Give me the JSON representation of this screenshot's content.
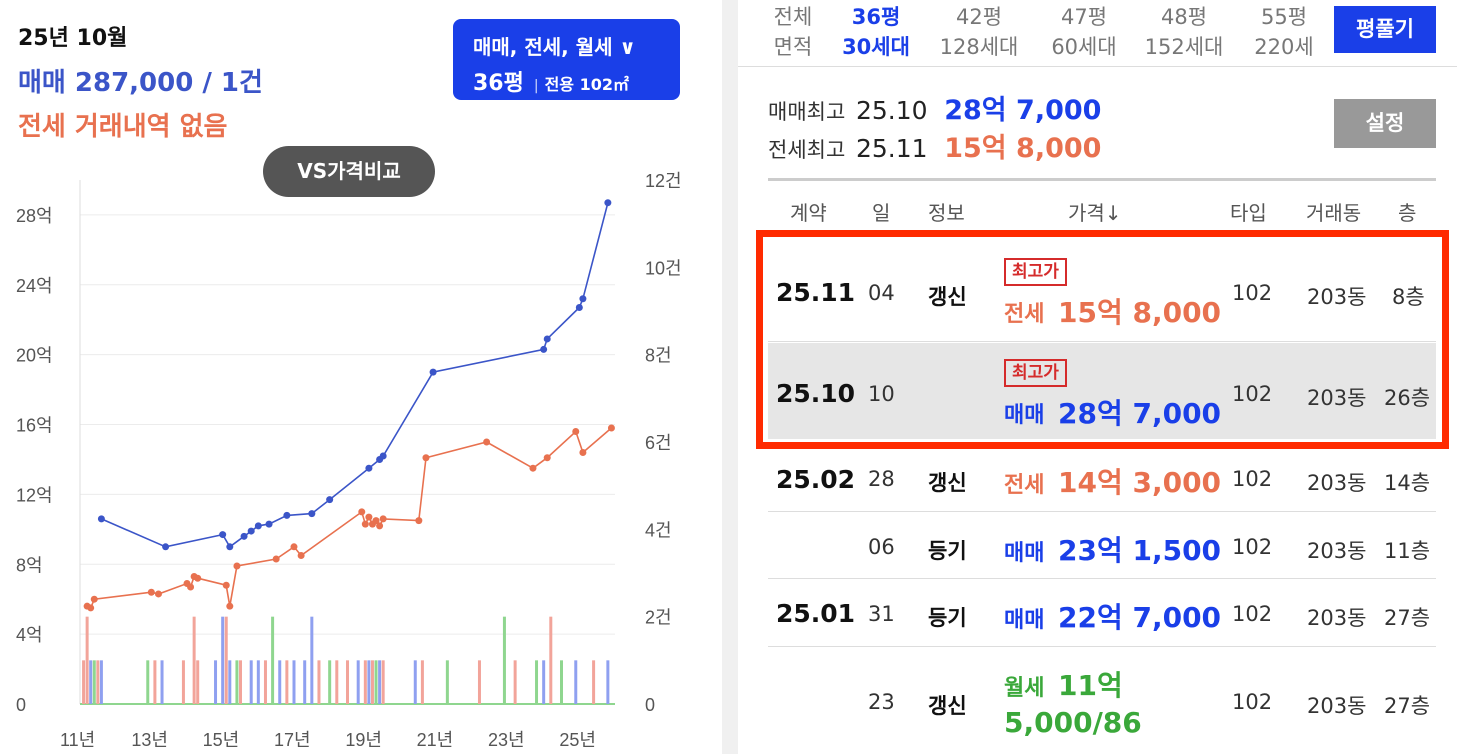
{
  "summary": {
    "period": "25년 10월",
    "sale": "매매 287,000 / 1건",
    "jeonse": "전세 거래내역 없음"
  },
  "filter": {
    "types": "매매, 전세, 월세 ∨",
    "pyeong": "36평",
    "exclusive": "전용 102㎡"
  },
  "vs_button": "VS가격비교",
  "area_tabs": [
    {
      "top": "전체",
      "bottom": "면적",
      "active": false
    },
    {
      "top": "36평",
      "bottom": "30세대",
      "active": true
    },
    {
      "top": "42평",
      "bottom": "128세대",
      "active": false
    },
    {
      "top": "47평",
      "bottom": "60세대",
      "active": false
    },
    {
      "top": "48평",
      "bottom": "152세대",
      "active": false
    },
    {
      "top": "55평",
      "bottom": "220세",
      "active": false
    }
  ],
  "pyeong_button": "평풀기",
  "max_info": {
    "sale_label": "매매최고",
    "sale_date": "25.10",
    "sale_price": "28억 7,000",
    "jeonse_label": "전세최고",
    "jeonse_date": "25.11",
    "jeonse_price": "15억 8,000"
  },
  "settings_button": "설정",
  "table": {
    "headers": [
      "계약",
      "일",
      "정보",
      "가격↓",
      "타입",
      "거래동",
      "층"
    ],
    "rows": [
      {
        "month": "25.11",
        "day": "04",
        "info": "갱신",
        "badge": "최고가",
        "kind": "전세",
        "amount": "15억 8,000",
        "type": "102",
        "dong": "203동",
        "floor": "8층"
      },
      {
        "month": "25.10",
        "day": "10",
        "info": "",
        "badge": "최고가",
        "kind": "매매",
        "amount": "28억 7,000",
        "type": "102",
        "dong": "203동",
        "floor": "26층"
      },
      {
        "month": "25.02",
        "day": "28",
        "info": "갱신",
        "badge": "",
        "kind": "전세",
        "amount": "14억 3,000",
        "type": "102",
        "dong": "203동",
        "floor": "14층"
      },
      {
        "month": "",
        "day": "06",
        "info": "등기",
        "badge": "",
        "kind": "매매",
        "amount": "23억 1,500",
        "type": "102",
        "dong": "203동",
        "floor": "11층"
      },
      {
        "month": "25.01",
        "day": "31",
        "info": "등기",
        "badge": "",
        "kind": "매매",
        "amount": "22억 7,000",
        "type": "102",
        "dong": "203동",
        "floor": "27층"
      },
      {
        "month": "",
        "day": "23",
        "info": "갱신",
        "badge": "",
        "kind": "월세",
        "amount": "11억",
        "amount2": "5,000/86",
        "type": "102",
        "dong": "203동",
        "floor": "27층"
      }
    ]
  },
  "colors": {
    "sale": "#3b55c8",
    "jeonse": "#e8714f",
    "monthly": "#3aa83a",
    "accent": "#1a3fe8",
    "highlight": "#ff2a00"
  },
  "chart_data": {
    "type": "line",
    "x_ticks": [
      "11년",
      "13년",
      "15년",
      "17년",
      "19년",
      "21년",
      "23년",
      "25년"
    ],
    "y_left_ticks": [
      "0",
      "4억",
      "8억",
      "12억",
      "16억",
      "20억",
      "24억",
      "28억"
    ],
    "y_left_range": [
      0,
      30
    ],
    "y_right_ticks": [
      "0",
      "2건",
      "4건",
      "6건",
      "8건",
      "10건",
      "12건"
    ],
    "y_right_range": [
      0,
      12
    ],
    "series": [
      {
        "name": "매매",
        "points": [
          [
            2011.6,
            10.6
          ],
          [
            2013.4,
            9.0
          ],
          [
            2015.0,
            9.7
          ],
          [
            2015.2,
            9.0
          ],
          [
            2015.6,
            9.6
          ],
          [
            2015.8,
            9.9
          ],
          [
            2016.0,
            10.2
          ],
          [
            2016.3,
            10.3
          ],
          [
            2016.8,
            10.8
          ],
          [
            2017.5,
            10.9
          ],
          [
            2018.0,
            11.7
          ],
          [
            2019.1,
            13.5
          ],
          [
            2019.4,
            14.0
          ],
          [
            2019.5,
            14.2
          ],
          [
            2020.9,
            19.0
          ],
          [
            2024.0,
            20.3
          ],
          [
            2024.1,
            20.9
          ],
          [
            2025.0,
            22.7
          ],
          [
            2025.1,
            23.2
          ],
          [
            2025.8,
            28.7
          ]
        ]
      },
      {
        "name": "전세",
        "points": [
          [
            2011.2,
            5.6
          ],
          [
            2011.3,
            5.5
          ],
          [
            2011.4,
            6.0
          ],
          [
            2013.0,
            6.4
          ],
          [
            2013.2,
            6.3
          ],
          [
            2014.0,
            6.9
          ],
          [
            2014.1,
            6.7
          ],
          [
            2014.2,
            7.3
          ],
          [
            2014.3,
            7.2
          ],
          [
            2015.1,
            6.8
          ],
          [
            2015.2,
            5.6
          ],
          [
            2015.4,
            7.9
          ],
          [
            2016.5,
            8.3
          ],
          [
            2017.0,
            9.0
          ],
          [
            2017.2,
            8.5
          ],
          [
            2018.9,
            11.0
          ],
          [
            2019.0,
            10.3
          ],
          [
            2019.1,
            10.7
          ],
          [
            2019.2,
            10.3
          ],
          [
            2019.3,
            10.5
          ],
          [
            2019.4,
            10.2
          ],
          [
            2019.5,
            10.6
          ],
          [
            2020.5,
            10.5
          ],
          [
            2020.7,
            14.1
          ],
          [
            2022.4,
            15.0
          ],
          [
            2023.7,
            13.5
          ],
          [
            2024.1,
            14.1
          ],
          [
            2024.9,
            15.6
          ],
          [
            2025.1,
            14.4
          ],
          [
            2025.9,
            15.8
          ]
        ]
      }
    ],
    "volume_colors": [
      "#f2a49a",
      "#8fa0f0",
      "#8fd68f"
    ]
  }
}
